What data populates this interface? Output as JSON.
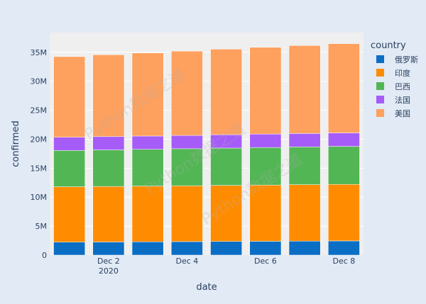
{
  "chart_data": {
    "type": "bar",
    "barmode": "stack",
    "xlabel": "date",
    "ylabel": "confirmed",
    "x": [
      "2020-12-01",
      "2020-12-02",
      "2020-12-03",
      "2020-12-04",
      "2020-12-05",
      "2020-12-06",
      "2020-12-07",
      "2020-12-08"
    ],
    "x_tick_labels": [
      {
        "x": "2020-12-02",
        "label": "Dec 2",
        "sub": "2020"
      },
      {
        "x": "2020-12-04",
        "label": "Dec 4"
      },
      {
        "x": "2020-12-06",
        "label": "Dec 6"
      },
      {
        "x": "2020-12-08",
        "label": "Dec 8"
      }
    ],
    "y_tick_labels": [
      "0",
      "5M",
      "10M",
      "15M",
      "20M",
      "25M",
      "30M",
      "35M"
    ],
    "y_ticks": [
      0,
      5000000,
      10000000,
      15000000,
      20000000,
      25000000,
      30000000,
      35000000
    ],
    "ylim": [
      0,
      38400000
    ],
    "grid": true,
    "legend_title": "country",
    "legend_position": "right",
    "series": [
      {
        "name": "俄罗斯",
        "color": "#0b6ec5",
        "values": [
          2240000,
          2270000,
          2300000,
          2330000,
          2360000,
          2390000,
          2420000,
          2450000
        ]
      },
      {
        "name": "印度",
        "color": "#ff8c00",
        "values": [
          9550000,
          9580000,
          9610000,
          9640000,
          9670000,
          9700000,
          9730000,
          9750000
        ]
      },
      {
        "name": "巴西",
        "color": "#53b655",
        "values": [
          6270000,
          6310000,
          6350000,
          6390000,
          6440000,
          6480000,
          6520000,
          6560000
        ]
      },
      {
        "name": "法国",
        "color": "#a65cf8",
        "values": [
          2280000,
          2290000,
          2290000,
          2300000,
          2310000,
          2320000,
          2320000,
          2330000
        ]
      },
      {
        "name": "美国",
        "color": "#fea05e",
        "values": [
          13910000,
          14120000,
          14330000,
          14540000,
          14760000,
          14970000,
          15180000,
          15400000
        ]
      }
    ]
  },
  "watermark": "Python数据之道"
}
